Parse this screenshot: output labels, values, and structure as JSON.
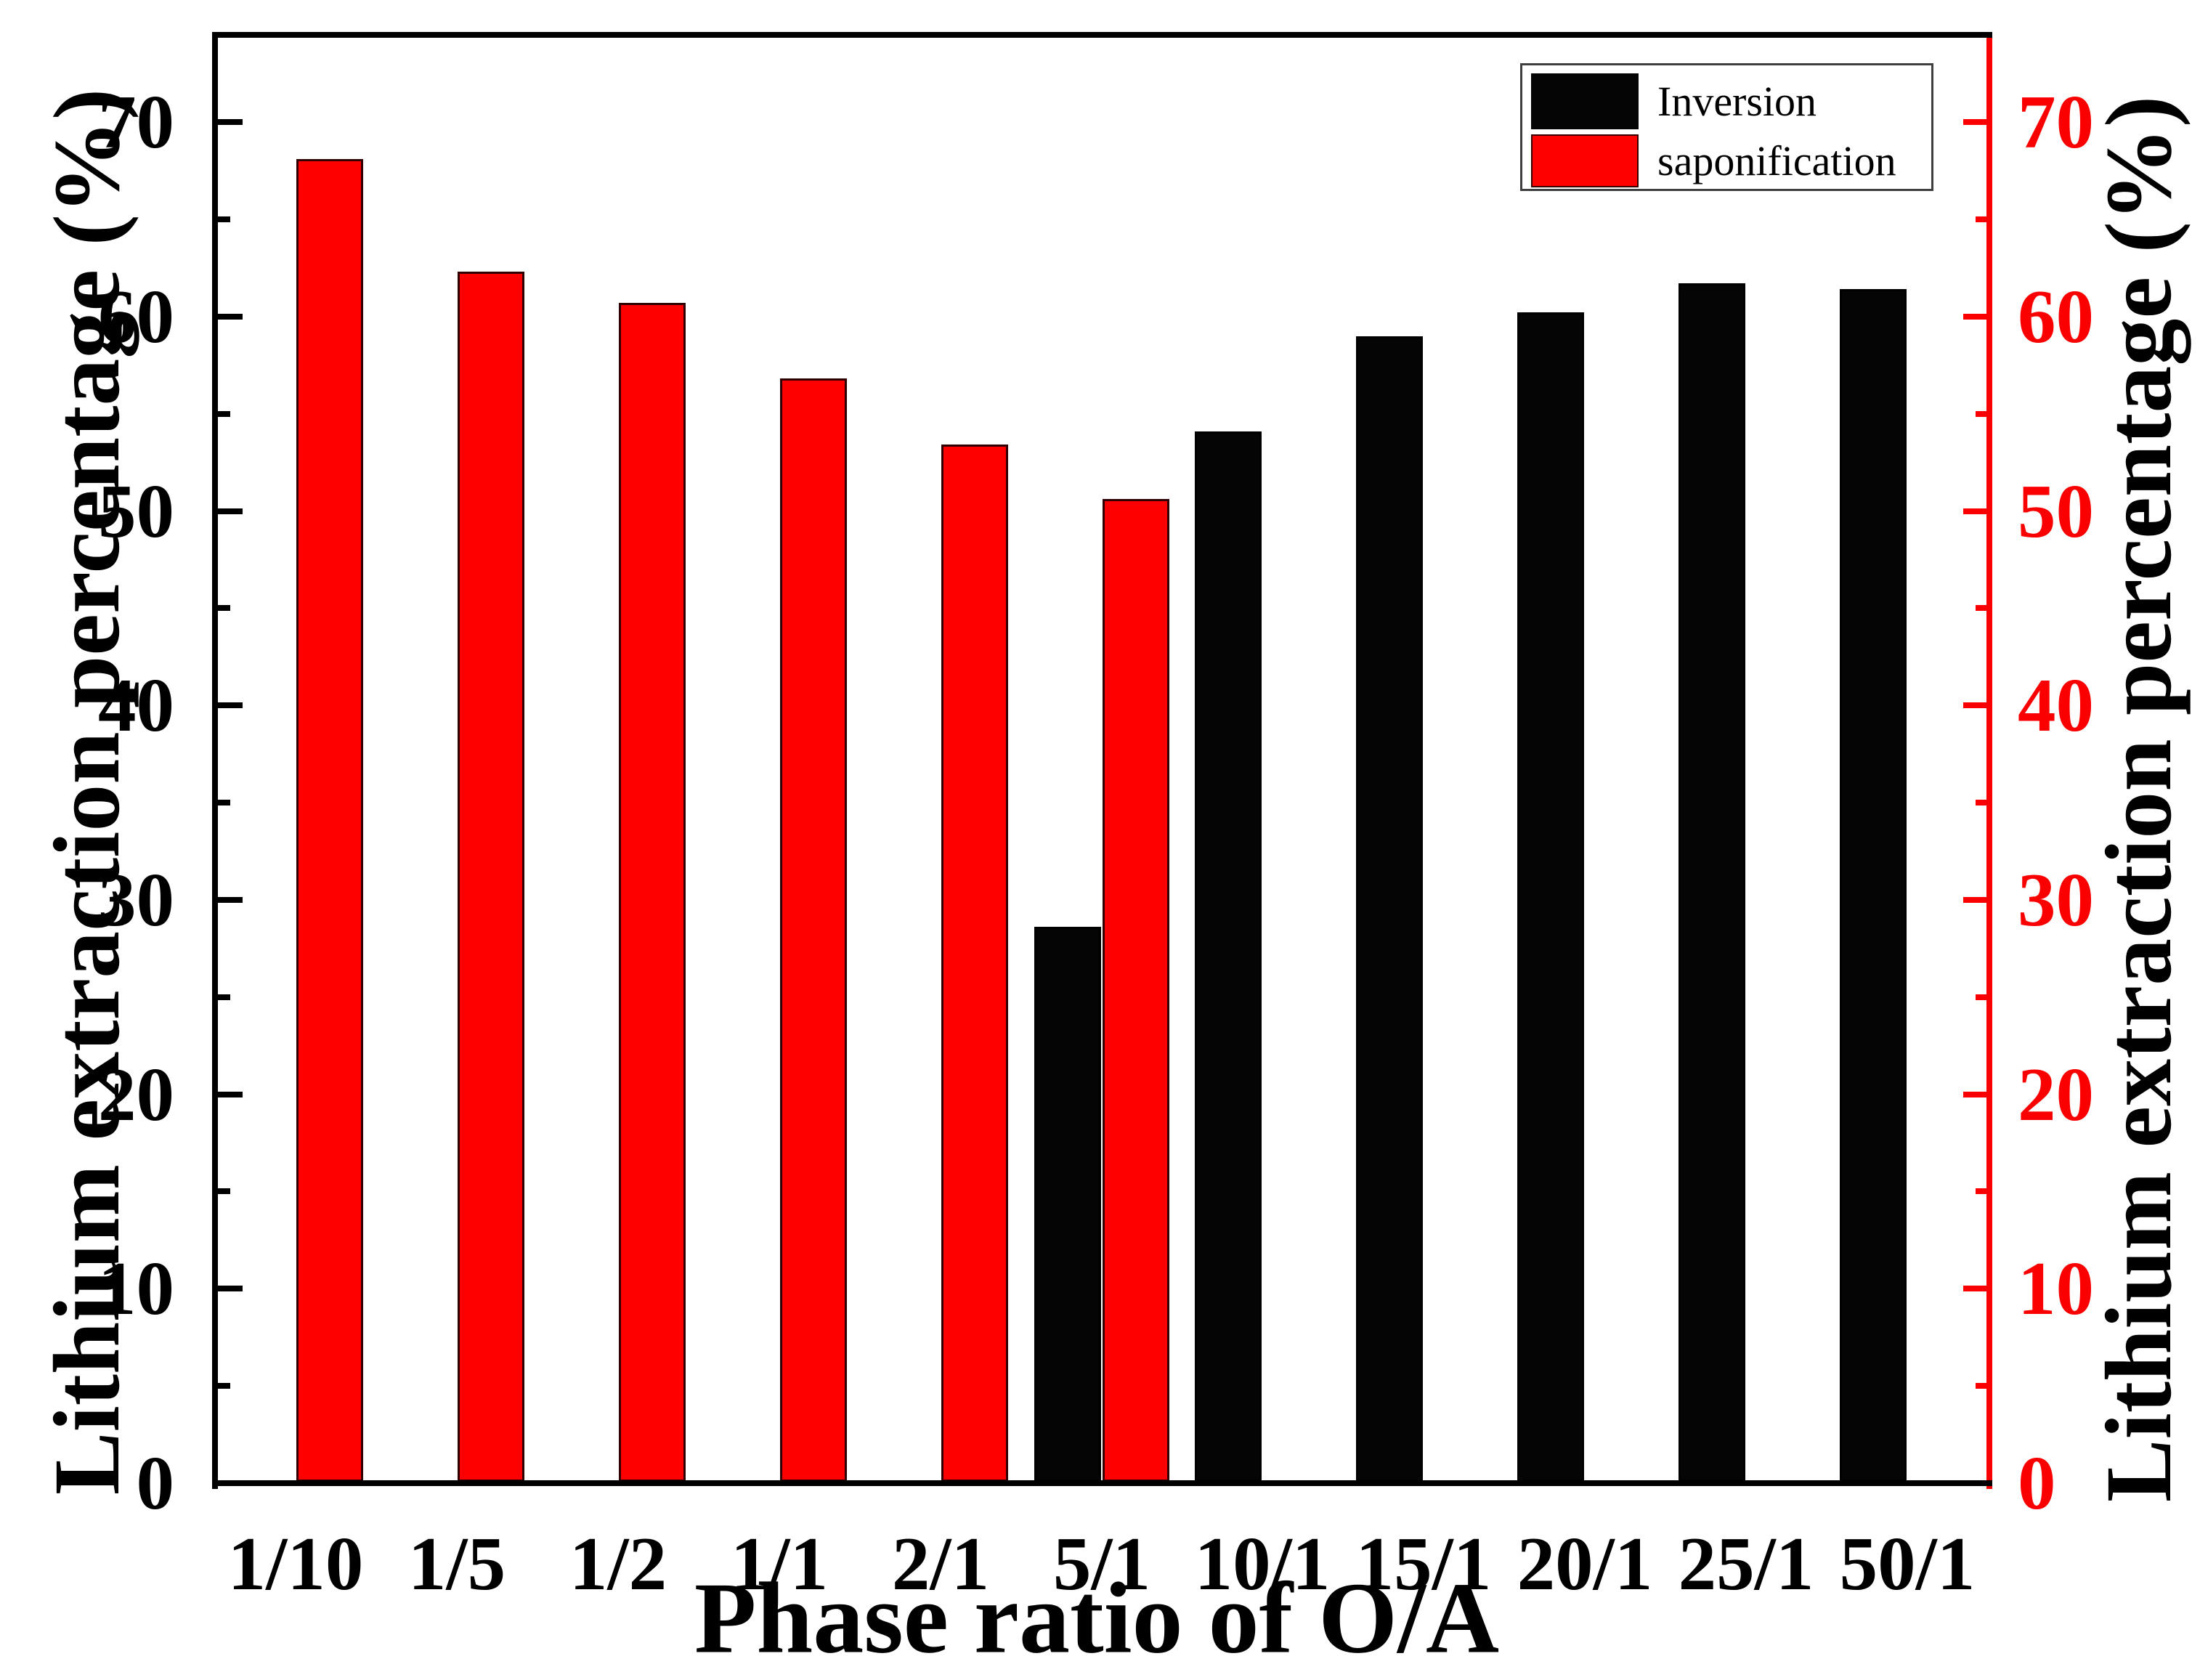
{
  "chart_data": {
    "type": "bar",
    "title": "",
    "xlabel": "Phase ratio of O/A",
    "ylabel_left": "Lithium extraction percentage (%)",
    "ylabel_right": "Lithium extraction percentage (%)",
    "categories": [
      "1/10",
      "1/5",
      "1/2",
      "1/1",
      "2/1",
      "5/1",
      "10/1",
      "15/1",
      "20/1",
      "25/1",
      "50/1"
    ],
    "series": [
      {
        "name": "Inversion",
        "color": "#050505",
        "values": [
          null,
          null,
          null,
          null,
          null,
          28.6,
          54.1,
          59.0,
          60.2,
          61.7,
          61.4
        ]
      },
      {
        "name": "saponification",
        "color": "#fe0000",
        "values": [
          68.1,
          62.3,
          60.7,
          56.8,
          53.4,
          50.6,
          null,
          null,
          null,
          null,
          null
        ]
      }
    ],
    "ylim": [
      0,
      75
    ],
    "yticks_major": [
      0,
      10,
      20,
      30,
      40,
      50,
      60,
      70
    ],
    "yticks_minor": [
      5,
      15,
      25,
      35,
      45,
      55,
      65
    ],
    "grid": false,
    "legend_position": "top-right",
    "axis_colors": {
      "left": "#000000",
      "right": "#fb0000",
      "top": "#000000",
      "bottom": "#000000"
    }
  },
  "legend": {
    "items": [
      {
        "label": "Inversion",
        "color": "#050505",
        "border": "#050505"
      },
      {
        "label": "saponification",
        "color": "#fe0000",
        "border": "#3a0000"
      }
    ]
  },
  "colors": {
    "background": "#ffffff",
    "bar_red": "#fe0000",
    "bar_red_border": "#300000",
    "bar_black": "#050505",
    "right_axis_red": "#fb0000",
    "text_black": "#000000",
    "legend_border": "#3f3f3f"
  }
}
